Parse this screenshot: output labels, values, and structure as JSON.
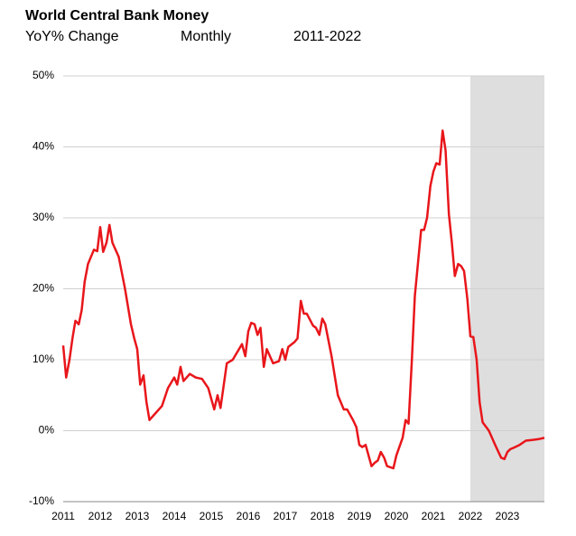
{
  "chart_data": {
    "type": "line",
    "title": "World Central Bank Money",
    "subtitle": [
      "YoY% Change",
      "Monthly",
      "2011-2022"
    ],
    "xlim": [
      2011,
      2024
    ],
    "xticks": [
      2011,
      2012,
      2013,
      2014,
      2015,
      2016,
      2017,
      2018,
      2019,
      2020,
      2021,
      2022,
      2023
    ],
    "ylim": [
      -10,
      50
    ],
    "yticks": [
      {
        "value": -10,
        "label": "-10%"
      },
      {
        "value": 0,
        "label": "0%"
      },
      {
        "value": 10,
        "label": "10%"
      },
      {
        "value": 20,
        "label": "20%"
      },
      {
        "value": 30,
        "label": "30%"
      },
      {
        "value": 40,
        "label": "40%"
      },
      {
        "value": 50,
        "label": "50%"
      }
    ],
    "grid": true,
    "shade": [
      2022,
      2024
    ],
    "shade_color": "#dedede",
    "series": [
      {
        "color": "#e8161b",
        "x": [
          2011.0,
          2011.08,
          2011.17,
          2011.25,
          2011.33,
          2011.42,
          2011.5,
          2011.58,
          2011.67,
          2011.75,
          2011.83,
          2011.92,
          2012.0,
          2012.08,
          2012.17,
          2012.25,
          2012.33,
          2012.5,
          2012.67,
          2012.83,
          2012.92,
          2013.0,
          2013.08,
          2013.17,
          2013.25,
          2013.33,
          2013.5,
          2013.67,
          2013.83,
          2014.0,
          2014.08,
          2014.17,
          2014.25,
          2014.42,
          2014.58,
          2014.75,
          2014.92,
          2015.0,
          2015.08,
          2015.17,
          2015.25,
          2015.42,
          2015.58,
          2015.75,
          2015.83,
          2015.92,
          2016.0,
          2016.08,
          2016.17,
          2016.25,
          2016.33,
          2016.42,
          2016.5,
          2016.67,
          2016.83,
          2016.92,
          2017.0,
          2017.08,
          2017.25,
          2017.33,
          2017.42,
          2017.5,
          2017.58,
          2017.75,
          2017.83,
          2017.92,
          2018.0,
          2018.08,
          2018.25,
          2018.42,
          2018.58,
          2018.67,
          2018.83,
          2018.92,
          2019.0,
          2019.08,
          2019.17,
          2019.33,
          2019.42,
          2019.5,
          2019.58,
          2019.67,
          2019.75,
          2019.92,
          2020.0,
          2020.17,
          2020.25,
          2020.33,
          2020.42,
          2020.5,
          2020.67,
          2020.75,
          2020.83,
          2020.92,
          2021.0,
          2021.08,
          2021.17,
          2021.25,
          2021.33,
          2021.42,
          2021.5,
          2021.58,
          2021.67,
          2021.75,
          2021.83,
          2021.92,
          2022.0,
          2022.08,
          2022.17,
          2022.25,
          2022.33,
          2022.5,
          2022.67,
          2022.83,
          2022.92,
          2023.0,
          2023.08,
          2023.17,
          2023.33,
          2023.5,
          2023.67,
          2023.83,
          2024.0
        ],
        "values": [
          12,
          7.5,
          10,
          13,
          15.5,
          15,
          17,
          21,
          23.5,
          24.5,
          25.5,
          25.3,
          28.7,
          25.2,
          26.5,
          29,
          26.5,
          24.5,
          20,
          15,
          13,
          11.5,
          6.5,
          7.8,
          4,
          1.5,
          2.5,
          3.5,
          6,
          7.5,
          6.5,
          9,
          7,
          8,
          7.5,
          7.3,
          6,
          4.5,
          3,
          5,
          3.2,
          9.5,
          10,
          11.5,
          12.2,
          10.5,
          14,
          15.2,
          15,
          13.5,
          14.5,
          9,
          11.5,
          9.5,
          9.8,
          11.5,
          10,
          11.8,
          12.5,
          13,
          18.3,
          16.5,
          16.5,
          14.8,
          14.5,
          13.5,
          15.8,
          15,
          10.5,
          5,
          3,
          3,
          1.5,
          0.5,
          -2,
          -2.3,
          -2,
          -5,
          -4.5,
          -4.2,
          -3,
          -3.8,
          -5,
          -5.3,
          -3.5,
          -1,
          1.5,
          1,
          10,
          19,
          28.3,
          28.3,
          30,
          34.5,
          36.5,
          37.7,
          37.5,
          42.3,
          39.5,
          30.5,
          26.5,
          21.8,
          23.5,
          23.2,
          22.5,
          18.5,
          13.3,
          13.2,
          10,
          4,
          1.2,
          0,
          -2,
          -3.8,
          -4,
          -3,
          -2.6,
          -2.4,
          -2,
          -1.4,
          -1.3,
          -1.2,
          -1
        ]
      }
    ]
  }
}
